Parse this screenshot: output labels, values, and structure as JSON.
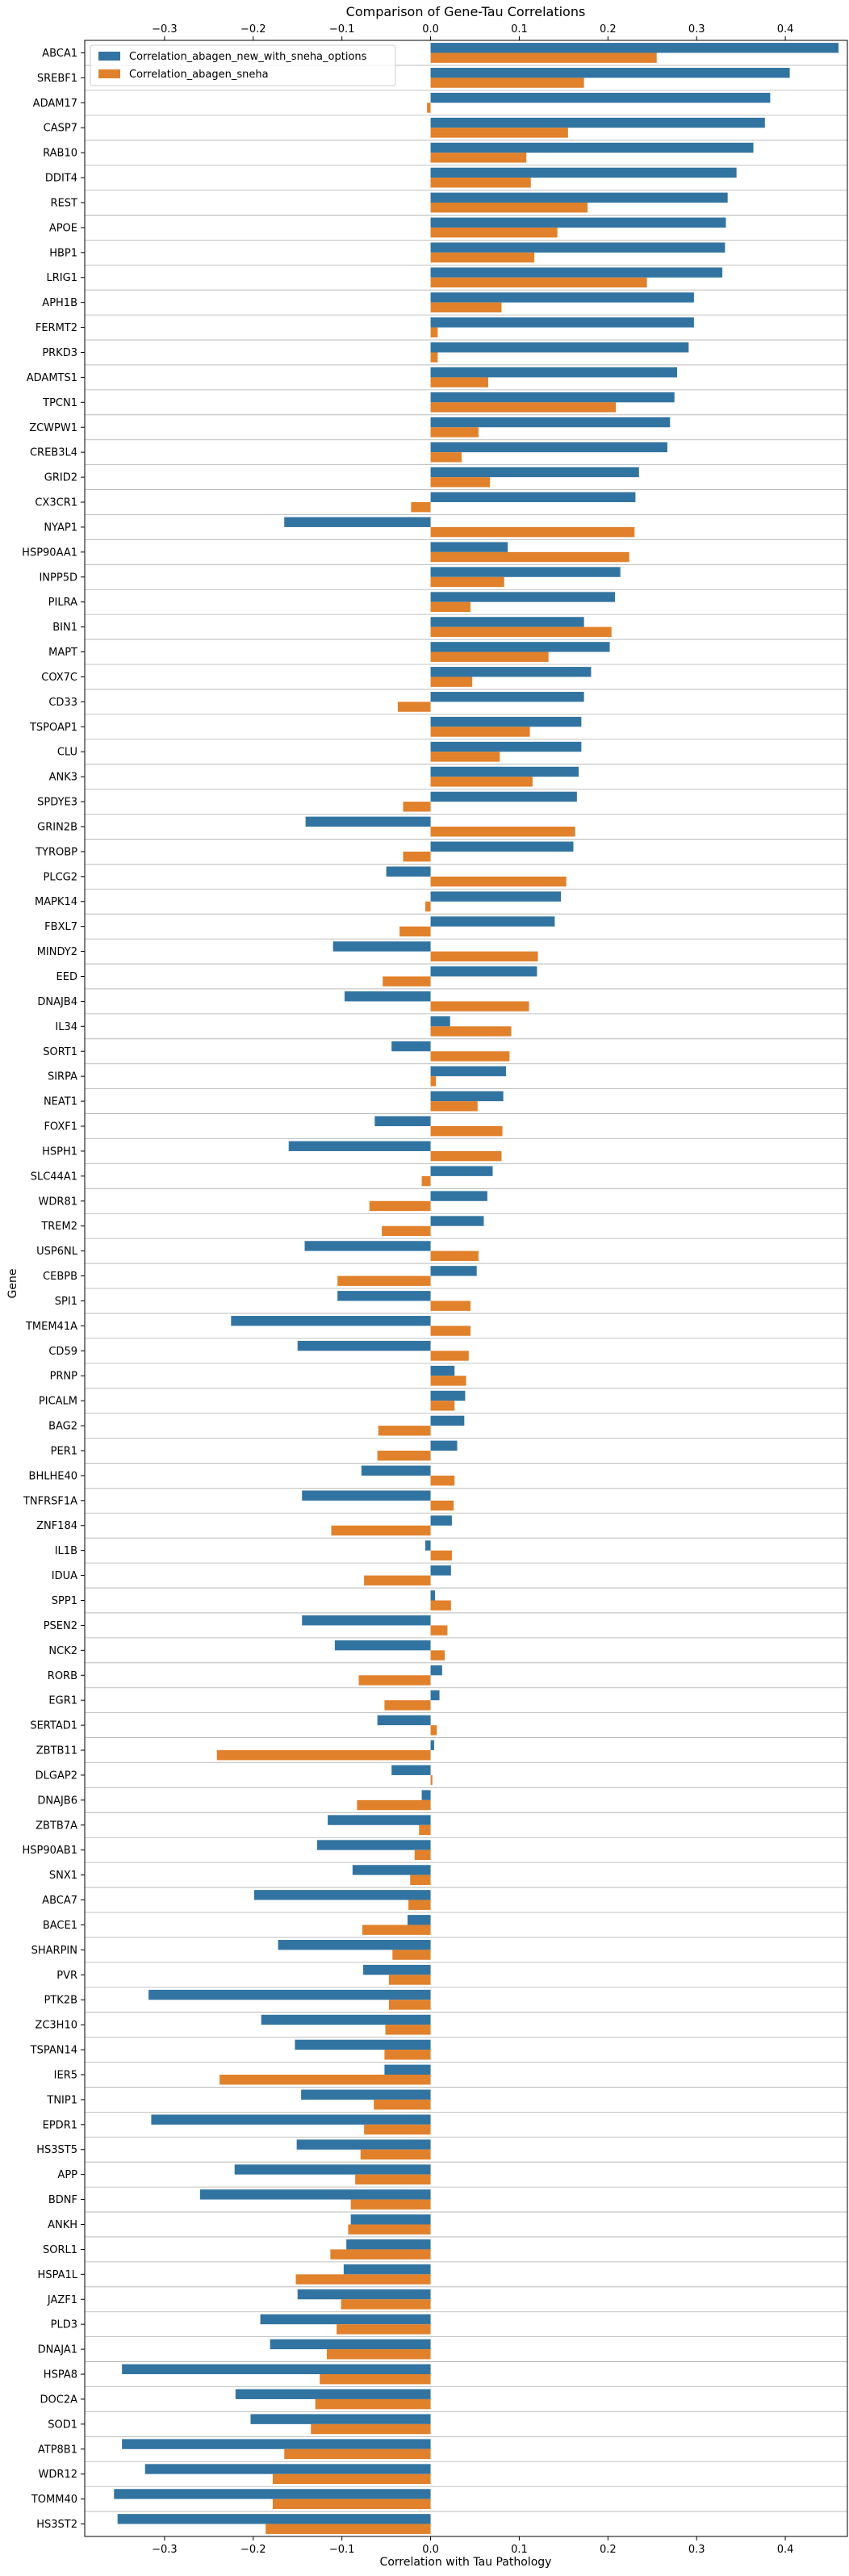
{
  "chart_data": {
    "type": "bar",
    "orientation": "horizontal",
    "title": "Comparison of Gene-Tau Correlations",
    "xlabel": "Correlation with Tau Pathology",
    "ylabel": "Gene",
    "xlim": [
      -0.39,
      0.47
    ],
    "xticks": [
      -0.3,
      -0.2,
      -0.1,
      0.0,
      0.1,
      0.2,
      0.3,
      0.4
    ],
    "xtick_labels": [
      "−0.3",
      "−0.2",
      "−0.1",
      "0.0",
      "0.1",
      "0.2",
      "0.3",
      "0.4"
    ],
    "grid": "horizontal lines between genes",
    "legend_position": "top-left",
    "categories": [
      "ABCA1",
      "SREBF1",
      "ADAM17",
      "CASP7",
      "RAB10",
      "DDIT4",
      "REST",
      "APOE",
      "HBP1",
      "LRIG1",
      "APH1B",
      "FERMT2",
      "PRKD3",
      "ADAMTS1",
      "TPCN1",
      "ZCWPW1",
      "CREB3L4",
      "GRID2",
      "CX3CR1",
      "NYAP1",
      "HSP90AA1",
      "INPP5D",
      "PILRA",
      "BIN1",
      "MAPT",
      "COX7C",
      "CD33",
      "TSPOAP1",
      "CLU",
      "ANK3",
      "SPDYE3",
      "GRIN2B",
      "TYROBP",
      "PLCG2",
      "MAPK14",
      "FBXL7",
      "MINDY2",
      "EED",
      "DNAJB4",
      "IL34",
      "SORT1",
      "SIRPA",
      "NEAT1",
      "FOXF1",
      "HSPH1",
      "SLC44A1",
      "WDR81",
      "TREM2",
      "USP6NL",
      "CEBPB",
      "SPI1",
      "TMEM41A",
      "CD59",
      "PRNP",
      "PICALM",
      "BAG2",
      "PER1",
      "BHLHE40",
      "TNFRSF1A",
      "ZNF184",
      "IL1B",
      "IDUA",
      "SPP1",
      "PSEN2",
      "NCK2",
      "RORB",
      "EGR1",
      "SERTAD1",
      "ZBTB11",
      "DLGAP2",
      "DNAJB6",
      "ZBTB7A",
      "HSP90AB1",
      "SNX1",
      "ABCA7",
      "BACE1",
      "SHARPIN",
      "PVR",
      "PTK2B",
      "ZC3H10",
      "TSPAN14",
      "IER5",
      "TNIP1",
      "EPDR1",
      "HS3ST5",
      "APP",
      "BDNF",
      "ANKH",
      "SORL1",
      "HSPA1L",
      "JAZF1",
      "PLD3",
      "DNAJA1",
      "HSPA8",
      "DOC2A",
      "SOD1",
      "ATP8B1",
      "WDR12",
      "TOMM40",
      "HS3ST2"
    ],
    "series": [
      {
        "name": "Correlation_abagen_new_with_sneha_options",
        "color": "#3274a1",
        "values": [
          0.46,
          0.405,
          0.383,
          0.377,
          0.364,
          0.345,
          0.335,
          0.333,
          0.332,
          0.329,
          0.297,
          0.297,
          0.291,
          0.278,
          0.275,
          0.27,
          0.267,
          0.235,
          0.231,
          -0.165,
          0.087,
          0.214,
          0.208,
          0.173,
          0.202,
          0.181,
          0.173,
          0.17,
          0.17,
          0.167,
          0.165,
          -0.141,
          0.161,
          -0.05,
          0.147,
          0.14,
          -0.11,
          0.12,
          -0.097,
          0.022,
          -0.044,
          0.085,
          0.082,
          -0.063,
          -0.16,
          0.07,
          0.064,
          0.06,
          -0.142,
          0.052,
          -0.105,
          -0.225,
          -0.15,
          0.027,
          0.039,
          0.038,
          0.03,
          -0.078,
          -0.145,
          0.024,
          -0.006,
          0.023,
          0.005,
          -0.145,
          -0.108,
          0.013,
          0.01,
          -0.06,
          0.004,
          -0.044,
          -0.01,
          -0.116,
          -0.128,
          -0.088,
          -0.199,
          -0.026,
          -0.172,
          -0.076,
          -0.318,
          -0.191,
          -0.153,
          -0.052,
          -0.146,
          -0.315,
          -0.151,
          -0.221,
          -0.26,
          -0.09,
          -0.095,
          -0.098,
          -0.15,
          -0.192,
          -0.181,
          -0.348,
          -0.22,
          -0.203,
          -0.348,
          -0.322,
          -0.357,
          -0.353
        ]
      },
      {
        "name": "Correlation_abagen_sneha",
        "color": "#e1812c",
        "values": [
          0.255,
          0.173,
          -0.004,
          0.155,
          0.108,
          0.113,
          0.177,
          0.143,
          0.117,
          0.244,
          0.08,
          0.008,
          0.008,
          0.065,
          0.209,
          0.054,
          0.035,
          0.067,
          -0.022,
          0.23,
          0.224,
          0.083,
          0.045,
          0.204,
          0.133,
          0.047,
          -0.037,
          0.112,
          0.078,
          0.115,
          -0.031,
          0.163,
          -0.031,
          0.153,
          -0.006,
          -0.035,
          0.121,
          -0.054,
          0.111,
          0.091,
          0.089,
          0.006,
          0.053,
          0.081,
          0.08,
          -0.01,
          -0.069,
          -0.055,
          0.054,
          -0.105,
          0.045,
          0.045,
          0.043,
          0.04,
          0.027,
          -0.059,
          -0.06,
          0.027,
          0.026,
          -0.112,
          0.024,
          -0.075,
          0.023,
          0.019,
          0.016,
          -0.081,
          -0.052,
          0.007,
          -0.241,
          0.002,
          -0.083,
          -0.013,
          -0.018,
          -0.023,
          -0.025,
          -0.077,
          -0.043,
          -0.047,
          -0.047,
          -0.051,
          -0.052,
          -0.238,
          -0.064,
          -0.075,
          -0.079,
          -0.085,
          -0.09,
          -0.093,
          -0.113,
          -0.152,
          -0.101,
          -0.106,
          -0.117,
          -0.125,
          -0.13,
          -0.135,
          -0.165,
          -0.178,
          -0.178,
          -0.186
        ]
      }
    ]
  }
}
